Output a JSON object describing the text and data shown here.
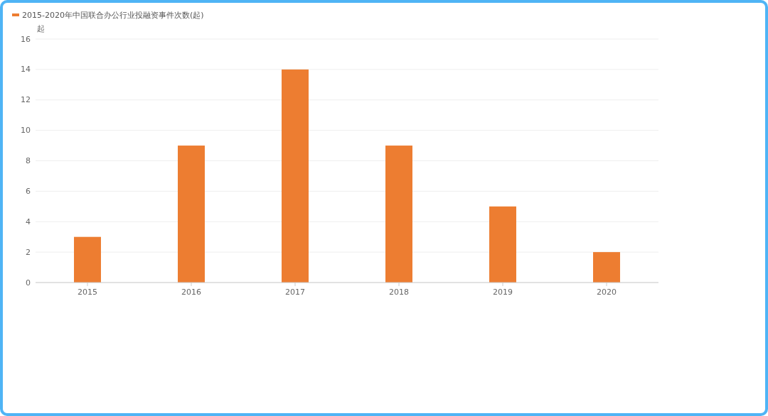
{
  "chart_data": {
    "type": "bar",
    "categories": [
      "2015",
      "2016",
      "2017",
      "2018",
      "2019",
      "2020"
    ],
    "series": [
      {
        "name": "2015-2020年中国联合办公行业投融资事件次数(起)",
        "color": "#ed7d31",
        "values": [
          3,
          9,
          14,
          9,
          5,
          2
        ]
      }
    ],
    "ylabel": "起",
    "ylim": [
      0,
      16
    ],
    "yticks": [
      0,
      2,
      4,
      6,
      8,
      10,
      12,
      14,
      16
    ],
    "grid": "y",
    "legend": "top left"
  }
}
